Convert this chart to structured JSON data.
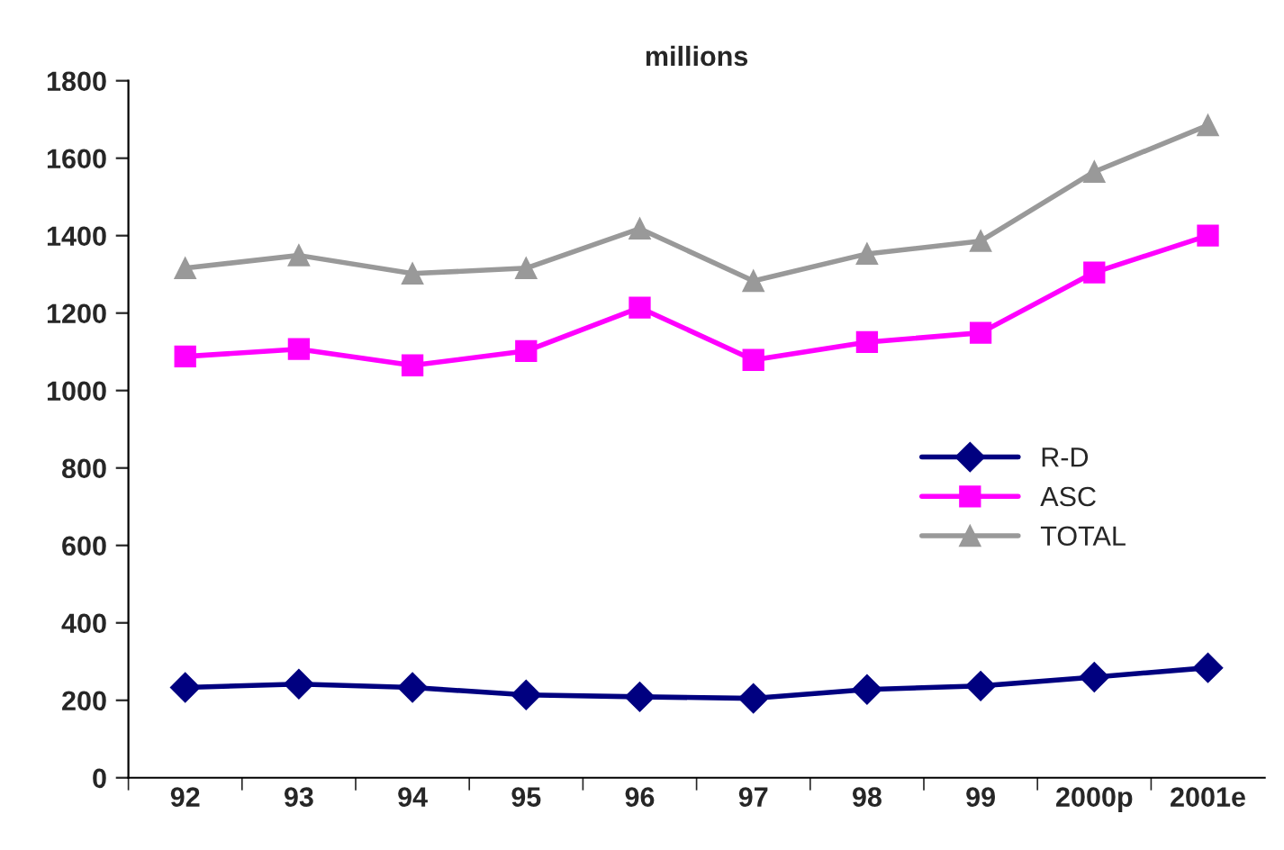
{
  "chart_data": {
    "type": "line",
    "title": "millions",
    "categories": [
      "92",
      "93",
      "94",
      "95",
      "96",
      "97",
      "98",
      "99",
      "2000p",
      "2001e"
    ],
    "series": [
      {
        "name": "R-D",
        "color": "#000080",
        "marker": "diamond",
        "values": [
          233,
          242,
          233,
          214,
          209,
          205,
          228,
          237,
          260,
          284
        ]
      },
      {
        "name": "ASC",
        "color": "#ff00ff",
        "marker": "square",
        "values": [
          1088,
          1107,
          1065,
          1102,
          1214,
          1079,
          1125,
          1149,
          1305,
          1400
        ]
      },
      {
        "name": "TOTAL",
        "color": "#999999",
        "marker": "triangle",
        "values": [
          1316,
          1349,
          1302,
          1316,
          1418,
          1283,
          1353,
          1386,
          1565,
          1685
        ]
      }
    ],
    "ylim": [
      0,
      1800
    ],
    "yticks": [
      0,
      200,
      400,
      600,
      800,
      1000,
      1200,
      1400,
      1600,
      1800
    ],
    "grid": false,
    "legend": "right"
  }
}
